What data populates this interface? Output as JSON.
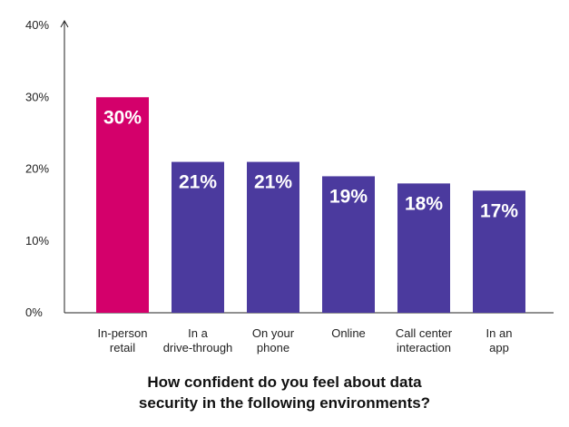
{
  "chart_data": {
    "type": "bar",
    "categories": [
      [
        "In-person",
        "retail"
      ],
      [
        "In a",
        "drive-through"
      ],
      [
        "On your",
        "phone"
      ],
      [
        "Online"
      ],
      [
        "Call center",
        "interaction"
      ],
      [
        "In an",
        "app"
      ]
    ],
    "values": [
      30,
      21,
      21,
      19,
      18,
      17
    ],
    "value_labels": [
      "30%",
      "21%",
      "21%",
      "19%",
      "18%",
      "17%"
    ],
    "bar_colors": [
      "#d4006b",
      "#4b3a9e",
      "#4b3a9e",
      "#4b3a9e",
      "#4b3a9e",
      "#4b3a9e"
    ],
    "ylim": [
      0,
      40
    ],
    "yticks": [
      0,
      10,
      20,
      30,
      40
    ],
    "ytick_labels": [
      "0%",
      "10%",
      "20%",
      "30%",
      "40%"
    ],
    "title": [
      "How confident do you feel about data",
      "security in the following environments?"
    ],
    "grid": false,
    "legend": "none"
  }
}
